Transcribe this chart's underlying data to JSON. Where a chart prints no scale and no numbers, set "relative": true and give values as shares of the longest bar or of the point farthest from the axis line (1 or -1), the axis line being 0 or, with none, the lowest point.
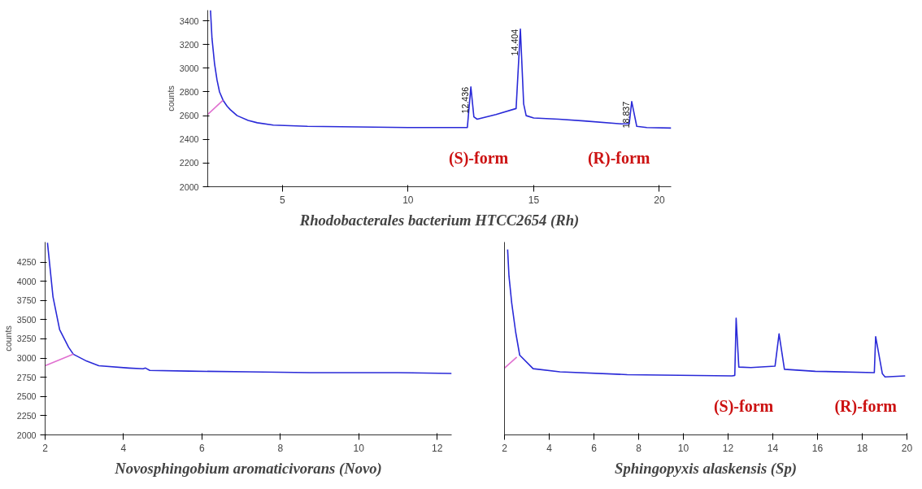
{
  "chart_data": [
    {
      "type": "line",
      "title": "Rhodobacterales bacterium HTCC2654 (Rh)",
      "ylabel": "counts",
      "xlim": [
        2.03,
        20.47
      ],
      "ylim": [
        2000,
        3490
      ],
      "xticks": [
        5,
        10,
        15,
        20
      ],
      "yticks": [
        2000,
        2200,
        2400,
        2600,
        2800,
        3000,
        3200,
        3400
      ],
      "grid": false,
      "series": [
        {
          "color": "#2a2ad8",
          "x": [
            2.14,
            2.2,
            2.3,
            2.4,
            2.5,
            2.64,
            2.8,
            2.93,
            3.2,
            3.64,
            4.0,
            4.64,
            6,
            8,
            10,
            12.3,
            12.36,
            12.5,
            12.62,
            12.75,
            13.5,
            14.3,
            14.47,
            14.6,
            14.7,
            15,
            16,
            17,
            18.5,
            18.8,
            18.9,
            19.1,
            19.5,
            20.47
          ],
          "values": [
            3490,
            3250,
            3040,
            2900,
            2800,
            2730,
            2680,
            2650,
            2600,
            2560,
            2540,
            2520,
            2510,
            2505,
            2500,
            2500,
            2500,
            2842,
            2590,
            2570,
            2610,
            2660,
            3330,
            2700,
            2600,
            2580,
            2570,
            2555,
            2530,
            2530,
            2719,
            2510,
            2500,
            2495
          ]
        },
        {
          "color": "#e070d0",
          "x": [
            2.03,
            2.64
          ],
          "values": [
            2610,
            2730
          ]
        }
      ],
      "annotations": [
        {
          "text": "12.436",
          "x": 12.5,
          "y": 2842
        },
        {
          "text": "14.404",
          "x": 14.47,
          "y": 3330
        },
        {
          "text": "18.837",
          "x": 18.9,
          "y": 2719
        },
        "(S)-form",
        "(R)-form"
      ]
    },
    {
      "type": "line",
      "title": "Novosphingobium aromaticivorans (Novo)",
      "ylabel": "counts",
      "xlim": [
        2,
        12.37
      ],
      "ylim": [
        2000,
        4510
      ],
      "xticks": [
        2,
        4,
        6,
        8,
        10,
        12
      ],
      "yticks": [
        2000,
        2250,
        2500,
        2750,
        3000,
        3250,
        3500,
        3750,
        4000,
        4250
      ],
      "grid": false,
      "series": [
        {
          "color": "#2a2ad8",
          "x": [
            2.06,
            2.2,
            2.37,
            2.6,
            2.72,
            3.06,
            3.37,
            4.14,
            4.5,
            4.56,
            4.67,
            5.68,
            7.2,
            8.75,
            10,
            11,
            12.37
          ],
          "values": [
            4500,
            3800,
            3370,
            3140,
            3050,
            2960,
            2900,
            2870,
            2860,
            2870,
            2840,
            2830,
            2820,
            2810,
            2810,
            2810,
            2800
          ]
        },
        {
          "color": "#e070d0",
          "x": [
            2.0,
            2.72
          ],
          "values": [
            2900,
            3050
          ]
        }
      ]
    },
    {
      "type": "line",
      "title": "Sphingopyxis alaskensis (Sp)",
      "relative": true,
      "xlim": [
        2,
        20
      ],
      "xticks": [
        2,
        4,
        6,
        8,
        10,
        12,
        14,
        16,
        18,
        20
      ],
      "tick_labels": "x",
      "grid": false,
      "series": [
        {
          "color": "#2a2ad8",
          "x": [
            2.14,
            2.2,
            2.32,
            2.5,
            2.68,
            3.28,
            4.48,
            7.49,
            12.18,
            12.3,
            12.36,
            12.48,
            13.02,
            14.1,
            14.28,
            14.52,
            15.9,
            18.54,
            18.6,
            18.9,
            19.02,
            19.92
          ],
          "values": [
            1.0,
            0.857,
            0.714,
            0.554,
            0.43,
            0.357,
            0.34,
            0.325,
            0.318,
            0.321,
            0.63,
            0.366,
            0.363,
            0.371,
            0.545,
            0.354,
            0.343,
            0.336,
            0.53,
            0.33,
            0.3125,
            0.318
          ]
        },
        {
          "color": "#e070d0",
          "x": [
            2.0,
            2.55
          ],
          "values": [
            0.36,
            0.42
          ]
        }
      ],
      "annotations": [
        "(S)-form",
        "(R)-form"
      ]
    }
  ]
}
